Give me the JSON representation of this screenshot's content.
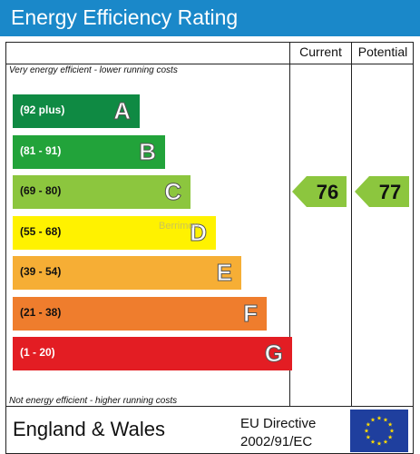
{
  "header": {
    "title": "Energy Efficiency Rating"
  },
  "columns": {
    "current": "Current",
    "potential": "Potential"
  },
  "notes": {
    "top": "Very energy efficient - lower running costs",
    "bottom": "Not energy efficient - higher running costs"
  },
  "footer": {
    "region": "England & Wales",
    "directive_line1": "EU Directive",
    "directive_line2": "2002/91/EC"
  },
  "watermark": "Berrimon",
  "chart_data": {
    "type": "bar",
    "title": "Energy Efficiency Rating",
    "categories": [
      "(92 plus)",
      "(81 - 91)",
      "(69 - 80)",
      "(55 - 68)",
      "(39 - 54)",
      "(21 - 38)",
      "(1 - 20)"
    ],
    "bands": [
      {
        "range": "(92 plus)",
        "letter": "A",
        "color": "#0f8a43",
        "text_color": "#ffffff"
      },
      {
        "range": "(81 - 91)",
        "letter": "B",
        "color": "#22a33a",
        "text_color": "#ffffff"
      },
      {
        "range": "(69 - 80)",
        "letter": "C",
        "color": "#8cc63e",
        "text_color": "#111111"
      },
      {
        "range": "(55 - 68)",
        "letter": "D",
        "color": "#fff200",
        "text_color": "#111111"
      },
      {
        "range": "(39 - 54)",
        "letter": "E",
        "color": "#f6ae35",
        "text_color": "#111111"
      },
      {
        "range": "(21 - 38)",
        "letter": "F",
        "color": "#ef7d2d",
        "text_color": "#111111"
      },
      {
        "range": "(1 - 20)",
        "letter": "G",
        "color": "#e31d23",
        "text_color": "#ffffff"
      }
    ],
    "current": {
      "value": 76,
      "band": "C",
      "color": "#8cc63e"
    },
    "potential": {
      "value": 77,
      "band": "C",
      "color": "#8cc63e"
    }
  }
}
